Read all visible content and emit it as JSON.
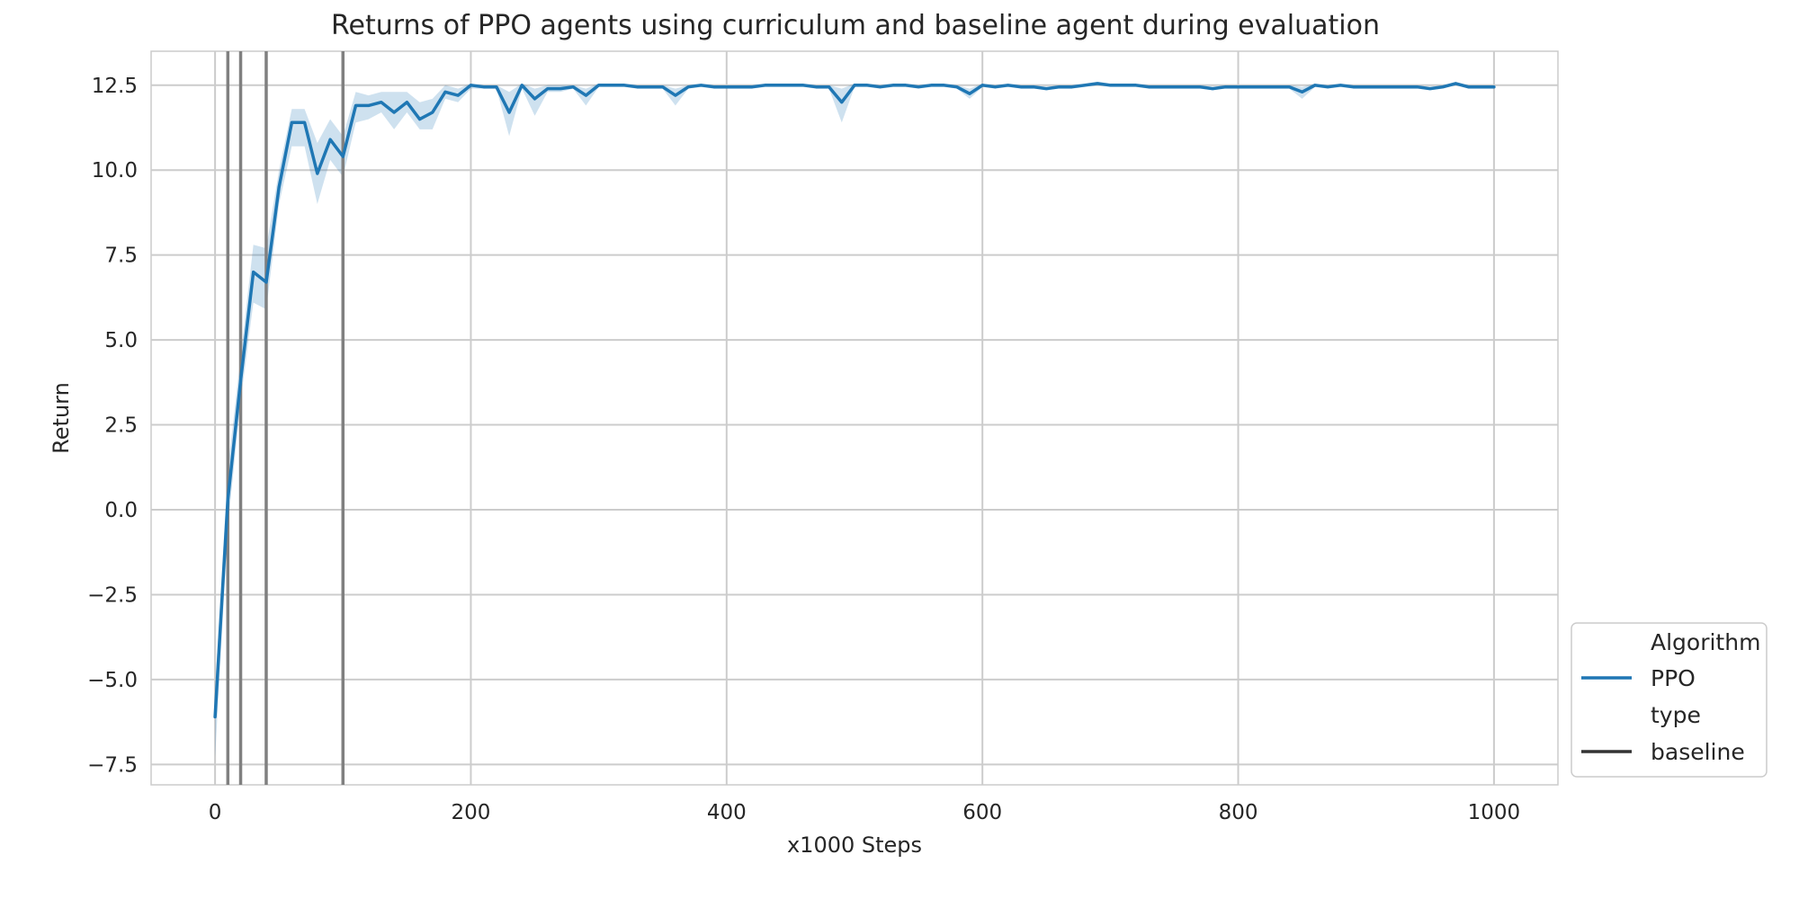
{
  "chart_data": {
    "type": "line",
    "title": "Returns of PPO agents using curriculum and baseline agent during evaluation",
    "xlabel": "x1000 Steps",
    "ylabel": "Return",
    "xlim": [
      -50,
      1050
    ],
    "ylim": [
      -8.1,
      13.5
    ],
    "xticks": [
      0,
      200,
      400,
      600,
      800,
      1000
    ],
    "xtick_labels": [
      "0",
      "200",
      "400",
      "600",
      "800",
      "1000"
    ],
    "yticks": [
      -7.5,
      -5.0,
      -2.5,
      0.0,
      2.5,
      5.0,
      7.5,
      10.0,
      12.5
    ],
    "ytick_labels": [
      "−7.5",
      "−5.0",
      "−2.5",
      "0.0",
      "2.5",
      "5.0",
      "7.5",
      "10.0",
      "12.5"
    ],
    "grid": true,
    "legend_position": "outside-lower-right",
    "legend": [
      {
        "text": "Algorithm",
        "kind": "header"
      },
      {
        "text": "PPO",
        "kind": "line",
        "color": "#1f77b4"
      },
      {
        "text": "type",
        "kind": "header"
      },
      {
        "text": "baseline",
        "kind": "line",
        "color": "#333333"
      }
    ],
    "vertical_lines": {
      "x": [
        10,
        20,
        40,
        100
      ],
      "color": "#808080"
    },
    "series": [
      {
        "name": "PPO",
        "color": "#1f77b4",
        "band_color": "#1f77b4",
        "x": [
          0,
          10,
          20,
          30,
          40,
          50,
          60,
          70,
          80,
          90,
          100,
          110,
          120,
          130,
          140,
          150,
          160,
          170,
          180,
          190,
          200,
          210,
          220,
          230,
          240,
          250,
          260,
          270,
          280,
          290,
          300,
          310,
          320,
          330,
          340,
          350,
          360,
          370,
          380,
          390,
          400,
          410,
          420,
          430,
          440,
          450,
          460,
          470,
          480,
          490,
          500,
          510,
          520,
          530,
          540,
          550,
          560,
          570,
          580,
          590,
          600,
          610,
          620,
          630,
          640,
          650,
          660,
          670,
          680,
          690,
          700,
          710,
          720,
          730,
          740,
          750,
          760,
          770,
          780,
          790,
          800,
          810,
          820,
          830,
          840,
          850,
          860,
          870,
          880,
          890,
          900,
          910,
          920,
          930,
          940,
          950,
          960,
          970,
          980,
          990,
          1000
        ],
        "y": [
          -6.1,
          0.3,
          3.8,
          7.0,
          6.7,
          9.5,
          11.4,
          11.4,
          9.9,
          10.9,
          10.4,
          11.9,
          11.9,
          12.0,
          11.7,
          12.0,
          11.5,
          11.7,
          12.3,
          12.2,
          12.5,
          12.45,
          12.45,
          11.7,
          12.5,
          12.1,
          12.4,
          12.4,
          12.45,
          12.2,
          12.5,
          12.5,
          12.5,
          12.45,
          12.45,
          12.45,
          12.2,
          12.45,
          12.5,
          12.45,
          12.45,
          12.45,
          12.45,
          12.5,
          12.5,
          12.5,
          12.5,
          12.45,
          12.45,
          12.0,
          12.5,
          12.5,
          12.45,
          12.5,
          12.5,
          12.45,
          12.5,
          12.5,
          12.45,
          12.25,
          12.5,
          12.45,
          12.5,
          12.45,
          12.45,
          12.4,
          12.45,
          12.45,
          12.5,
          12.55,
          12.5,
          12.5,
          12.5,
          12.45,
          12.45,
          12.45,
          12.45,
          12.45,
          12.4,
          12.45,
          12.45,
          12.45,
          12.45,
          12.45,
          12.45,
          12.3,
          12.5,
          12.45,
          12.5,
          12.45,
          12.45,
          12.45,
          12.45,
          12.45,
          12.45,
          12.4,
          12.45,
          12.55,
          12.45,
          12.45,
          12.45
        ],
        "lower": [
          -7.3,
          -0.5,
          3.2,
          6.1,
          5.9,
          9.0,
          10.7,
          10.7,
          9.0,
          10.3,
          9.8,
          11.4,
          11.5,
          11.7,
          11.2,
          11.7,
          11.2,
          11.2,
          12.1,
          12.0,
          12.4,
          12.4,
          12.4,
          11.0,
          12.4,
          11.6,
          12.3,
          12.3,
          12.4,
          11.9,
          12.45,
          12.45,
          12.45,
          12.4,
          12.4,
          12.4,
          11.9,
          12.4,
          12.45,
          12.4,
          12.4,
          12.4,
          12.4,
          12.45,
          12.45,
          12.45,
          12.45,
          12.4,
          12.4,
          11.4,
          12.45,
          12.45,
          12.4,
          12.45,
          12.45,
          12.4,
          12.45,
          12.45,
          12.4,
          12.1,
          12.45,
          12.4,
          12.45,
          12.4,
          12.4,
          12.35,
          12.4,
          12.4,
          12.45,
          12.5,
          12.45,
          12.45,
          12.45,
          12.4,
          12.4,
          12.4,
          12.4,
          12.4,
          12.35,
          12.4,
          12.4,
          12.4,
          12.4,
          12.4,
          12.4,
          12.1,
          12.45,
          12.4,
          12.45,
          12.4,
          12.4,
          12.4,
          12.4,
          12.4,
          12.4,
          12.35,
          12.4,
          12.5,
          12.4,
          12.4,
          12.4
        ],
        "upper": [
          -5.3,
          1.2,
          4.5,
          7.8,
          7.7,
          10.0,
          11.8,
          11.8,
          10.8,
          11.5,
          11.0,
          12.3,
          12.2,
          12.3,
          12.3,
          12.3,
          12.0,
          12.1,
          12.5,
          12.4,
          12.55,
          12.5,
          12.5,
          12.3,
          12.55,
          12.4,
          12.5,
          12.5,
          12.5,
          12.4,
          12.55,
          12.55,
          12.55,
          12.5,
          12.5,
          12.5,
          12.4,
          12.5,
          12.55,
          12.5,
          12.5,
          12.5,
          12.5,
          12.55,
          12.55,
          12.55,
          12.55,
          12.5,
          12.5,
          12.4,
          12.55,
          12.55,
          12.5,
          12.55,
          12.55,
          12.5,
          12.55,
          12.55,
          12.5,
          12.4,
          12.55,
          12.5,
          12.55,
          12.5,
          12.5,
          12.45,
          12.5,
          12.5,
          12.55,
          12.6,
          12.55,
          12.55,
          12.55,
          12.5,
          12.5,
          12.5,
          12.5,
          12.5,
          12.45,
          12.5,
          12.5,
          12.5,
          12.5,
          12.5,
          12.5,
          12.45,
          12.55,
          12.5,
          12.55,
          12.5,
          12.5,
          12.5,
          12.5,
          12.5,
          12.5,
          12.45,
          12.5,
          12.6,
          12.5,
          12.5,
          12.5
        ]
      }
    ]
  }
}
